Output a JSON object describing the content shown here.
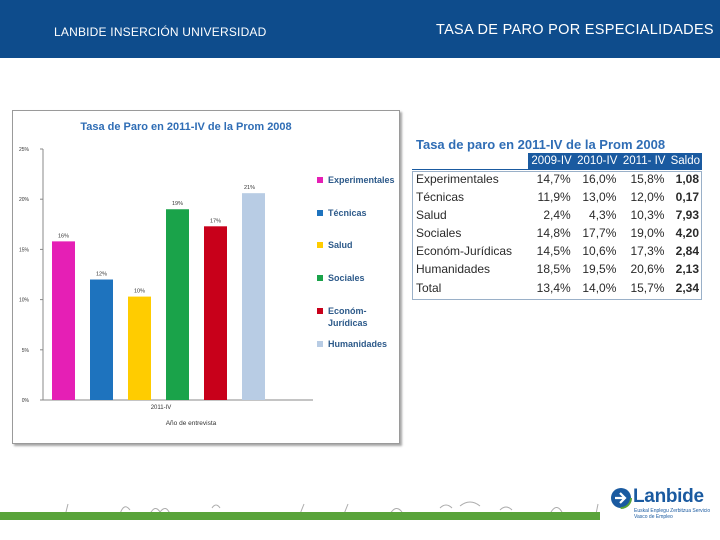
{
  "header": {
    "left_title": "LANBIDE INSERCIÓN UNIVERSIDAD",
    "right_title": "TASA DE PARO POR ESPECIALIDADES"
  },
  "chart_data": {
    "type": "bar",
    "title": "Tasa de Paro en 2011-IV de la Prom 2008",
    "xlabel": "Año de entrevista",
    "ylabel": "",
    "x_tick": "2011-IV",
    "ylim": [
      0,
      25
    ],
    "y_ticks": [
      "0%",
      "5%",
      "10%",
      "15%",
      "20%",
      "25%"
    ],
    "categories": [
      "Experimentales",
      "Técnicas",
      "Salud",
      "Sociales",
      "Económ-Jurídicas",
      "Humanidades"
    ],
    "values": [
      15.8,
      12.0,
      10.3,
      19.0,
      17.3,
      20.6
    ],
    "data_labels": [
      "16%",
      "12%",
      "10%",
      "19%",
      "17%",
      "21%"
    ],
    "colors": [
      "#e51fb5",
      "#1e73be",
      "#ffcc00",
      "#1aa34a",
      "#c8001a",
      "#b8cce4"
    ],
    "legend_position": "right"
  },
  "legend": {
    "items": [
      {
        "label": "Experimentales",
        "color": "#e51fb5"
      },
      {
        "label": "Técnicas",
        "color": "#1e73be"
      },
      {
        "label": "Salud",
        "color": "#ffcc00"
      },
      {
        "label": "Sociales",
        "color": "#1aa34a"
      },
      {
        "label": "Económ-Jurídicas",
        "color": "#c8001a"
      },
      {
        "label": "Humanidades",
        "color": "#b8cce4"
      }
    ]
  },
  "table": {
    "title": "Tasa de paro en 2011-IV de la Prom 2008",
    "columns": [
      "",
      "2009-IV",
      "2010-IV",
      "2011- IV",
      "Saldo"
    ],
    "rows": [
      [
        "Experimentales",
        "14,7%",
        "16,0%",
        "15,8%",
        "1,08"
      ],
      [
        "Técnicas",
        "11,9%",
        "13,0%",
        "12,0%",
        "0,17"
      ],
      [
        "Salud",
        "2,4%",
        "4,3%",
        "10,3%",
        "7,93"
      ],
      [
        "Sociales",
        "14,8%",
        "17,7%",
        "19,0%",
        "4,20"
      ],
      [
        "Económ-Jurídicas",
        "14,5%",
        "10,6%",
        "17,3%",
        "2,84"
      ],
      [
        "Humanidades",
        "18,5%",
        "19,5%",
        "20,6%",
        "2,13"
      ],
      [
        "Total",
        "13,4%",
        "14,0%",
        "15,7%",
        "2,34"
      ]
    ]
  },
  "logo": {
    "name": "Lanbide",
    "subtitle": "Euskal Enplegu Zerbitzua Servicio Vasco de Empleo",
    "color": "#1a5aa0"
  },
  "colors": {
    "header_bg": "#0e4c8c",
    "accent_green": "#59a33a",
    "table_header_bg": "#1a5aa0"
  }
}
